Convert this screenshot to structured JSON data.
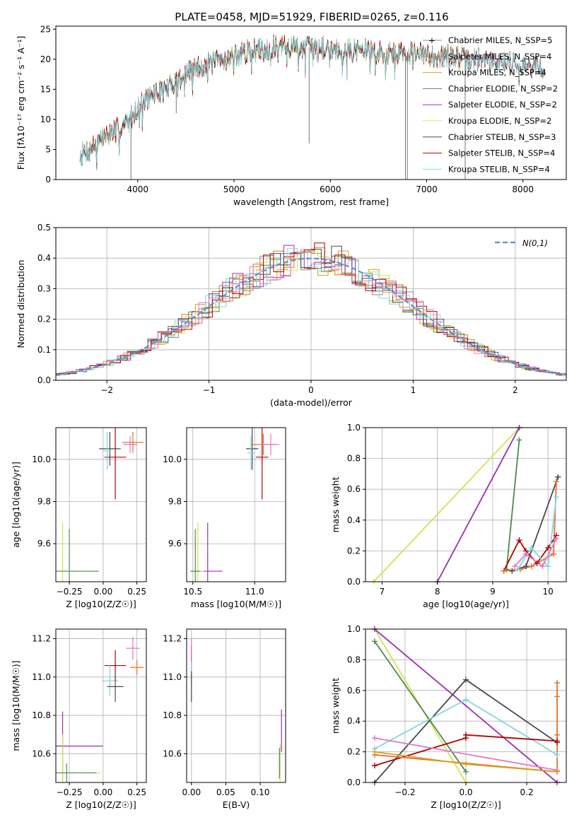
{
  "figure": {
    "title": "PLATE=0458, MJD=51929, FIBERID=0265, z=0.116"
  },
  "colors": {
    "chabrier_miles": "#8c8c8c",
    "salpeter_miles": "#e8702a",
    "kroupa_miles": "#d4a017",
    "chabrier_elodie": "#4f8a4f",
    "salpeter_elodie": "#9b30b0",
    "kroupa_elodie": "#d4e157",
    "chabrier_stelib": "#4a4a4a",
    "salpeter_stelib": "#b30000",
    "kroupa_stelib": "#80d8e0",
    "pink": "#e377c2",
    "normal": "#5b8fd6"
  },
  "chart_data": [
    {
      "id": "spectrum",
      "type": "line",
      "title": "PLATE=0458, MJD=51929, FIBERID=0265, z=0.116",
      "xlabel": "wavelength [Angstrom, rest frame]",
      "ylabel": "Flux [fλ10⁻¹⁷ erg cm⁻² s⁻¹ A⁻¹]",
      "xlim": [
        3150,
        8450
      ],
      "ylim": [
        0,
        25.5
      ],
      "xticks": [
        "4000",
        "5000",
        "6000",
        "7000",
        "8000"
      ],
      "yticks": [
        "0",
        "5",
        "10",
        "15",
        "20",
        "25"
      ],
      "legend": [
        "Chabrier MILES, N_SSP=5",
        "Salpeter MILES, N_SSP=4",
        "Kroupa MILES, N_SSP=4",
        "Chabrier ELODIE, N_SSP=2",
        "Salpeter ELODIE, N_SSP=2",
        "Kroupa ELODIE, N_SSP=2",
        "Chabrier STELIB, N_SSP=3",
        "Salpeter STELIB, N_SSP=4",
        "Kroupa STELIB, N_SSP=4"
      ],
      "continuum": [
        [
          3400,
          4
        ],
        [
          3500,
          5
        ],
        [
          3600,
          6.5
        ],
        [
          3700,
          7.5
        ],
        [
          3800,
          8.5
        ],
        [
          3900,
          9.5
        ],
        [
          4000,
          12
        ],
        [
          4100,
          13.5
        ],
        [
          4200,
          14.5
        ],
        [
          4300,
          15
        ],
        [
          4400,
          16.5
        ],
        [
          4500,
          17.5
        ],
        [
          4600,
          18.5
        ],
        [
          4700,
          19
        ],
        [
          4800,
          19.5
        ],
        [
          4900,
          20
        ],
        [
          5000,
          20.5
        ],
        [
          5100,
          21
        ],
        [
          5200,
          21.5
        ],
        [
          5300,
          21.5
        ],
        [
          5400,
          22
        ],
        [
          5500,
          22
        ],
        [
          5600,
          22
        ],
        [
          5700,
          22
        ],
        [
          5800,
          22
        ],
        [
          5900,
          22
        ],
        [
          6000,
          22
        ],
        [
          6100,
          21.5
        ],
        [
          6200,
          21.5
        ],
        [
          6300,
          21.5
        ],
        [
          6400,
          21.5
        ],
        [
          6500,
          21
        ],
        [
          6600,
          21
        ],
        [
          6700,
          21
        ],
        [
          6800,
          21
        ],
        [
          6900,
          21
        ],
        [
          7000,
          20.5
        ],
        [
          7100,
          20.5
        ],
        [
          7200,
          20.5
        ],
        [
          7300,
          20.5
        ],
        [
          7400,
          20
        ],
        [
          7500,
          20
        ],
        [
          7600,
          20
        ],
        [
          7700,
          19.5
        ],
        [
          7800,
          19.5
        ],
        [
          7900,
          19.5
        ],
        [
          8000,
          19
        ],
        [
          8100,
          19
        ],
        [
          8200,
          18.5
        ]
      ]
    },
    {
      "id": "residuals",
      "type": "line",
      "xlabel": "(data-model)/error",
      "ylabel": "Normed distribution",
      "xlim": [
        -2.5,
        2.5
      ],
      "ylim": [
        0,
        0.5
      ],
      "xticks": [
        "−2",
        "−1",
        "0",
        "1",
        "2"
      ],
      "yticks": [
        "0.0",
        "0.1",
        "0.2",
        "0.3",
        "0.4",
        "0.5"
      ],
      "legend": [
        "N(0,1)"
      ],
      "bin_width": 0.1
    },
    {
      "id": "age-vs-Z",
      "type": "scatter",
      "xlabel": "Z [log10(Z/Z☉)]",
      "ylabel": "age  [log10(age/yr)]",
      "xlim": [
        -0.35,
        0.32
      ],
      "ylim": [
        9.42,
        10.15
      ],
      "xticks": [
        "−0.25",
        "0.00",
        "0.25"
      ],
      "yticks": [
        "9.6",
        "9.8",
        "10.0"
      ],
      "points": [
        {
          "x": 0.05,
          "y": 10.05,
          "xerr": 0.08,
          "yerr": 0.08,
          "c": "chabrier_stelib"
        },
        {
          "x": 0.09,
          "y": 10.01,
          "xerr": 0.08,
          "yerr": 0.2,
          "c": "salpeter_stelib"
        },
        {
          "x": 0.22,
          "y": 10.08,
          "xerr": 0.08,
          "yerr": 0.05,
          "c": "salpeter_miles"
        },
        {
          "x": 0.2,
          "y": 10.07,
          "xerr": 0.05,
          "yerr": 0.04,
          "c": "pink"
        },
        {
          "x": 0.03,
          "y": 10.04,
          "xerr": 0.03,
          "yerr": 0.09,
          "c": "kroupa_stelib"
        },
        {
          "x": -0.3,
          "y": 9.47,
          "xerr": 0.02,
          "yerr": 0.23,
          "c": "kroupa_elodie"
        },
        {
          "x": -0.3,
          "y": 9.47,
          "xerr": 0.25,
          "yerr": 0.0,
          "c": "kroupa_elodie"
        },
        {
          "x": -0.25,
          "y": 9.47,
          "xerr": 0.22,
          "yerr": 0.2,
          "c": "chabrier_elodie"
        }
      ]
    },
    {
      "id": "age-vs-mass",
      "type": "scatter",
      "xlabel": "mass [log10(M/M☉)]",
      "ylabel": "",
      "xlim": [
        10.45,
        11.25
      ],
      "ylim": [
        9.42,
        10.15
      ],
      "xticks": [
        "10.5",
        "11.0"
      ],
      "yticks": [
        "9.6",
        "9.8",
        "10.0"
      ],
      "points": [
        {
          "x": 10.98,
          "y": 10.05,
          "xerr": 0.05,
          "yerr": 0.1,
          "c": "chabrier_stelib"
        },
        {
          "x": 11.06,
          "y": 10.01,
          "xerr": 0.05,
          "yerr": 0.2,
          "c": "salpeter_stelib"
        },
        {
          "x": 11.07,
          "y": 10.07,
          "xerr": 0.1,
          "yerr": 0.05,
          "c": "salpeter_miles"
        },
        {
          "x": 11.13,
          "y": 10.07,
          "xerr": 0.07,
          "yerr": 0.05,
          "c": "pink"
        },
        {
          "x": 10.97,
          "y": 10.03,
          "xerr": 0.03,
          "yerr": 0.08,
          "c": "kroupa_stelib"
        },
        {
          "x": 10.62,
          "y": 9.47,
          "xerr": 0.12,
          "yerr": 0.23,
          "c": "salpeter_elodie"
        },
        {
          "x": 10.54,
          "y": 9.47,
          "xerr": 0.05,
          "yerr": 0.23,
          "c": "kroupa_elodie"
        },
        {
          "x": 10.52,
          "y": 9.47,
          "xerr": 0.04,
          "yerr": 0.2,
          "c": "chabrier_elodie"
        }
      ]
    },
    {
      "id": "massweight-vs-age",
      "type": "line",
      "xlabel": "age  [log10(age/yr)]",
      "ylabel": "mass weight",
      "xlim": [
        6.7,
        10.33
      ],
      "ylim": [
        0,
        1
      ],
      "xticks": [
        "7",
        "8",
        "9",
        "10"
      ],
      "yticks": [
        "0.0",
        "0.2",
        "0.4",
        "0.6",
        "0.8",
        "1.0"
      ],
      "series": [
        {
          "c": "kroupa_elodie",
          "points": [
            [
              6.85,
              0.0
            ],
            [
              9.48,
              1.0
            ]
          ]
        },
        {
          "c": "salpeter_elodie",
          "points": [
            [
              8.0,
              0.0
            ],
            [
              9.48,
              1.0
            ]
          ]
        },
        {
          "c": "chabrier_elodie",
          "points": [
            [
              9.25,
              0.08
            ],
            [
              9.48,
              0.92
            ]
          ]
        },
        {
          "c": "chabrier_stelib",
          "points": [
            [
              9.35,
              0.07
            ],
            [
              9.6,
              0.1
            ],
            [
              10.18,
              0.68
            ]
          ]
        },
        {
          "c": "salpeter_stelib",
          "points": [
            [
              9.2,
              0.07
            ],
            [
              9.48,
              0.27
            ],
            [
              9.6,
              0.2
            ],
            [
              9.8,
              0.12
            ],
            [
              10.0,
              0.22
            ],
            [
              10.15,
              0.3
            ]
          ]
        },
        {
          "c": "salpeter_miles",
          "points": [
            [
              9.2,
              0.07
            ],
            [
              9.5,
              0.08
            ],
            [
              9.7,
              0.1
            ],
            [
              10.1,
              0.18
            ],
            [
              10.15,
              0.65
            ]
          ]
        },
        {
          "c": "kroupa_stelib",
          "points": [
            [
              9.45,
              0.08
            ],
            [
              9.7,
              0.22
            ],
            [
              10.0,
              0.1
            ],
            [
              10.15,
              0.55
            ]
          ]
        },
        {
          "c": "pink",
          "points": [
            [
              9.4,
              0.1
            ],
            [
              9.6,
              0.18
            ],
            [
              9.9,
              0.1
            ],
            [
              10.15,
              0.28
            ]
          ]
        }
      ]
    },
    {
      "id": "mass-vs-Z",
      "type": "scatter",
      "xlabel": "Z [log10(Z/Z☉)]",
      "ylabel": "mass [log10(M/M☉)]",
      "xlim": [
        -0.35,
        0.32
      ],
      "ylim": [
        10.45,
        11.25
      ],
      "xticks": [
        "−0.25",
        "0.00",
        "0.25"
      ],
      "yticks": [
        "10.6",
        "10.8",
        "11.0",
        "11.2"
      ],
      "points": [
        {
          "x": 0.09,
          "y": 11.06,
          "xerr": 0.08,
          "yerr": 0.08,
          "c": "salpeter_stelib"
        },
        {
          "x": 0.22,
          "y": 11.15,
          "xerr": 0.05,
          "yerr": 0.06,
          "c": "pink"
        },
        {
          "x": 0.25,
          "y": 11.05,
          "xerr": 0.05,
          "yerr": 0.04,
          "c": "salpeter_miles"
        },
        {
          "x": 0.05,
          "y": 10.98,
          "xerr": 0.06,
          "yerr": 0.08,
          "c": "kroupa_stelib"
        },
        {
          "x": 0.09,
          "y": 10.95,
          "xerr": 0.06,
          "yerr": 0.08,
          "c": "chabrier_stelib"
        },
        {
          "x": -0.3,
          "y": 10.64,
          "xerr": 0.02,
          "yerr": 0.18,
          "c": "salpeter_elodie"
        },
        {
          "x": -0.3,
          "y": 10.64,
          "xerr": 0.3,
          "yerr": 0.0,
          "c": "salpeter_elodie"
        },
        {
          "x": -0.3,
          "y": 10.5,
          "xerr": 0.02,
          "yerr": 0.2,
          "c": "kroupa_elodie"
        },
        {
          "x": -0.27,
          "y": 10.5,
          "xerr": 0.25,
          "yerr": 0.0,
          "c": "kroupa_elodie"
        },
        {
          "x": -0.27,
          "y": 10.5,
          "xerr": 0.22,
          "yerr": 0.05,
          "c": "chabrier_elodie"
        }
      ]
    },
    {
      "id": "mass-vs-EBV",
      "type": "scatter",
      "xlabel": "E(B-V)",
      "ylabel": "",
      "xlim": [
        -0.007,
        0.137
      ],
      "ylim": [
        10.45,
        11.25
      ],
      "xticks": [
        "0.00",
        "0.05",
        "0.10"
      ],
      "yticks": [
        "10.6",
        "10.8",
        "11.0",
        "11.2"
      ],
      "points": [
        {
          "x": 0.0,
          "y": 11.06,
          "xerr": 0.0,
          "yerr": 0.1,
          "c": "salpeter_stelib"
        },
        {
          "x": 0.0,
          "y": 11.1,
          "xerr": 0.0,
          "yerr": 0.1,
          "c": "pink"
        },
        {
          "x": 0.0,
          "y": 10.98,
          "xerr": 0.0,
          "yerr": 0.1,
          "c": "kroupa_stelib"
        },
        {
          "x": 0.0,
          "y": 10.95,
          "xerr": 0.0,
          "yerr": 0.08,
          "c": "chabrier_stelib"
        },
        {
          "x": 0.131,
          "y": 10.72,
          "xerr": 0.0,
          "yerr": 0.11,
          "c": "salpeter_elodie"
        },
        {
          "x": 0.129,
          "y": 10.55,
          "xerr": 0.0,
          "yerr": 0.1,
          "c": "kroupa_elodie"
        },
        {
          "x": 0.128,
          "y": 10.55,
          "xerr": 0.0,
          "yerr": 0.08,
          "c": "chabrier_elodie"
        }
      ]
    },
    {
      "id": "massweight-vs-Z",
      "type": "line",
      "xlabel": "Z [log10(Z/Z☉)]",
      "ylabel": "mass weight",
      "xlim": [
        -0.33,
        0.33
      ],
      "ylim": [
        0,
        1
      ],
      "xticks": [
        "−0.2",
        "0.0",
        "0.2"
      ],
      "yticks": [
        "0.0",
        "0.2",
        "0.4",
        "0.6",
        "0.8",
        "1.0"
      ],
      "series": [
        {
          "c": "kroupa_elodie",
          "points": [
            [
              -0.3,
              1.0
            ],
            [
              0.0,
              0.0
            ]
          ]
        },
        {
          "c": "salpeter_elodie",
          "points": [
            [
              -0.3,
              1.0
            ],
            [
              0.3,
              0.0
            ]
          ]
        },
        {
          "c": "chabrier_elodie",
          "points": [
            [
              -0.3,
              0.92
            ],
            [
              0.0,
              0.07
            ]
          ]
        },
        {
          "c": "chabrier_stelib",
          "points": [
            [
              -0.3,
              0.0
            ],
            [
              0.0,
              0.67
            ],
            [
              0.3,
              0.26
            ]
          ]
        },
        {
          "c": "kroupa_stelib",
          "points": [
            [
              -0.3,
              0.22
            ],
            [
              0.0,
              0.54
            ],
            [
              0.3,
              0.18
            ]
          ]
        },
        {
          "c": "salpeter_stelib",
          "points": [
            [
              -0.3,
              0.11
            ],
            [
              0.0,
              0.29
            ],
            [
              0.0,
              0.31
            ],
            [
              0.3,
              0.27
            ]
          ]
        },
        {
          "c": "pink",
          "points": [
            [
              -0.3,
              0.29
            ],
            [
              0.3,
              0.08
            ]
          ]
        },
        {
          "c": "salpeter_miles",
          "points": [
            [
              -0.3,
              0.18
            ],
            [
              0.3,
              0.07
            ],
            [
              0.3,
              0.65
            ],
            [
              0.3,
              0.56
            ],
            [
              0.3,
              0.31
            ],
            [
              0.3,
              0.07
            ]
          ]
        },
        {
          "c": "kroupa_miles",
          "points": [
            [
              -0.3,
              0.2
            ],
            [
              0.0,
              0.12
            ],
            [
              0.3,
              0.07
            ]
          ]
        }
      ]
    }
  ]
}
